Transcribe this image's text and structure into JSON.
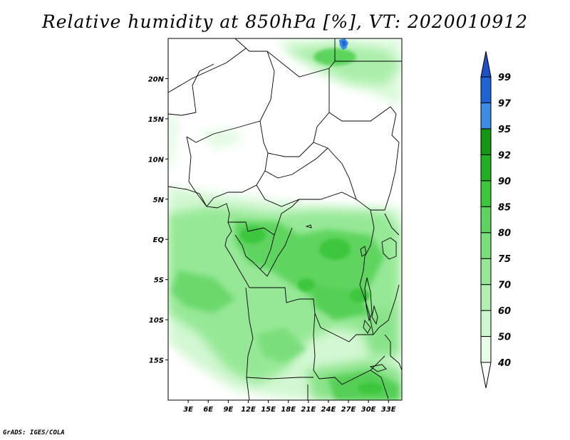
{
  "title": "Relative humidity at 850hPa [%], VT: 2020010912",
  "credit": "GrADS: IGES/COLA",
  "map": {
    "lon_range": [
      0,
      35
    ],
    "lat_range": [
      -20,
      25
    ],
    "x_ticks": [
      "3E",
      "6E",
      "9E",
      "12E",
      "15E",
      "18E",
      "21E",
      "24E",
      "27E",
      "30E",
      "33E"
    ],
    "y_ticks": [
      "20N",
      "15N",
      "10N",
      "5N",
      "EQ",
      "5S",
      "10S",
      "15S"
    ]
  },
  "colorbar": {
    "levels": [
      "40",
      "50",
      "60",
      "70",
      "75",
      "80",
      "85",
      "90",
      "92",
      "95",
      "97",
      "99"
    ],
    "colors": [
      "#ffffff",
      "#e6fde6",
      "#cdf8cd",
      "#b1f0b1",
      "#96e896",
      "#7ade7a",
      "#5dd45d",
      "#3cc63c",
      "#22b022",
      "#149614",
      "#3c8ce6",
      "#1f63d6",
      "#1e50c8"
    ]
  }
}
